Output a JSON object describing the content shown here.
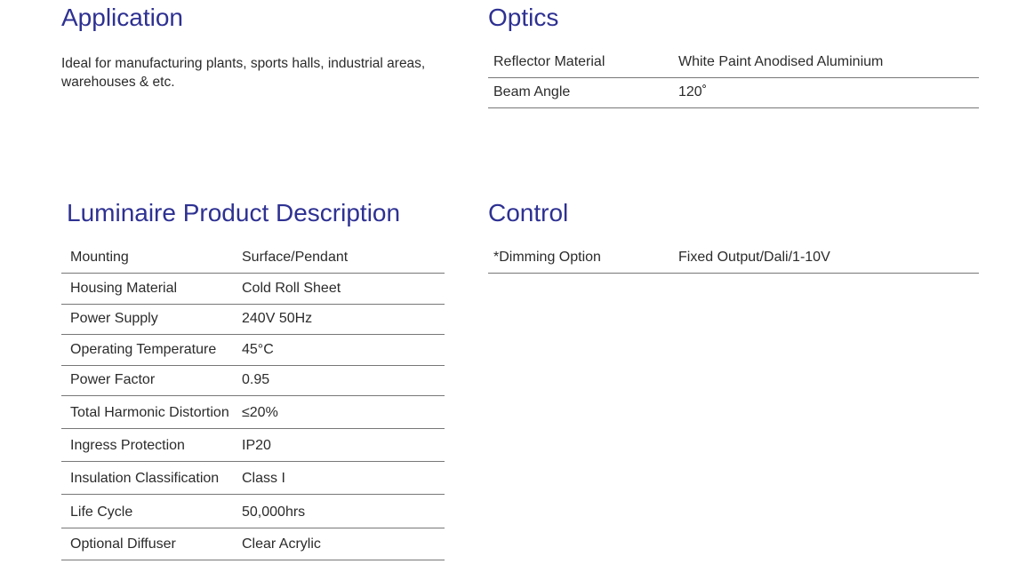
{
  "application": {
    "title": "Application",
    "text": "Ideal for manufacturing plants, sports halls, industrial areas, warehouses & etc."
  },
  "optics": {
    "title": "Optics",
    "rows": [
      {
        "label": "Reflector Material",
        "value": "White Paint Anodised Aluminium"
      },
      {
        "label": "Beam Angle",
        "value": "120˚"
      }
    ]
  },
  "luminaire": {
    "title": "Luminaire Product Description",
    "rows": [
      {
        "label": "Mounting",
        "value": "Surface/Pendant"
      },
      {
        "label": "Housing Material",
        "value": "Cold Roll Sheet"
      },
      {
        "label": "Power Supply",
        "value": "240V 50Hz"
      },
      {
        "label": "Operating Temperature",
        "value": "45°C"
      },
      {
        "label": "Power Factor",
        "value": "0.95"
      },
      {
        "label": "Total Harmonic Distortion",
        "value": "≤20%"
      },
      {
        "label": "Ingress Protection",
        "value": "IP20"
      },
      {
        "label": "Insulation Classification",
        "value": "Class I"
      },
      {
        "label": "Life Cycle",
        "value": "50,000hrs"
      },
      {
        "label": "Optional Diffuser",
        "value": "Clear Acrylic"
      }
    ]
  },
  "control": {
    "title": "Control",
    "rows": [
      {
        "label": "*Dimming Option",
        "value": "Fixed Output/Dali/1-10V"
      }
    ]
  },
  "colors": {
    "heading": "#2e3192",
    "text": "#2b2b2b",
    "rule": "#777777"
  }
}
